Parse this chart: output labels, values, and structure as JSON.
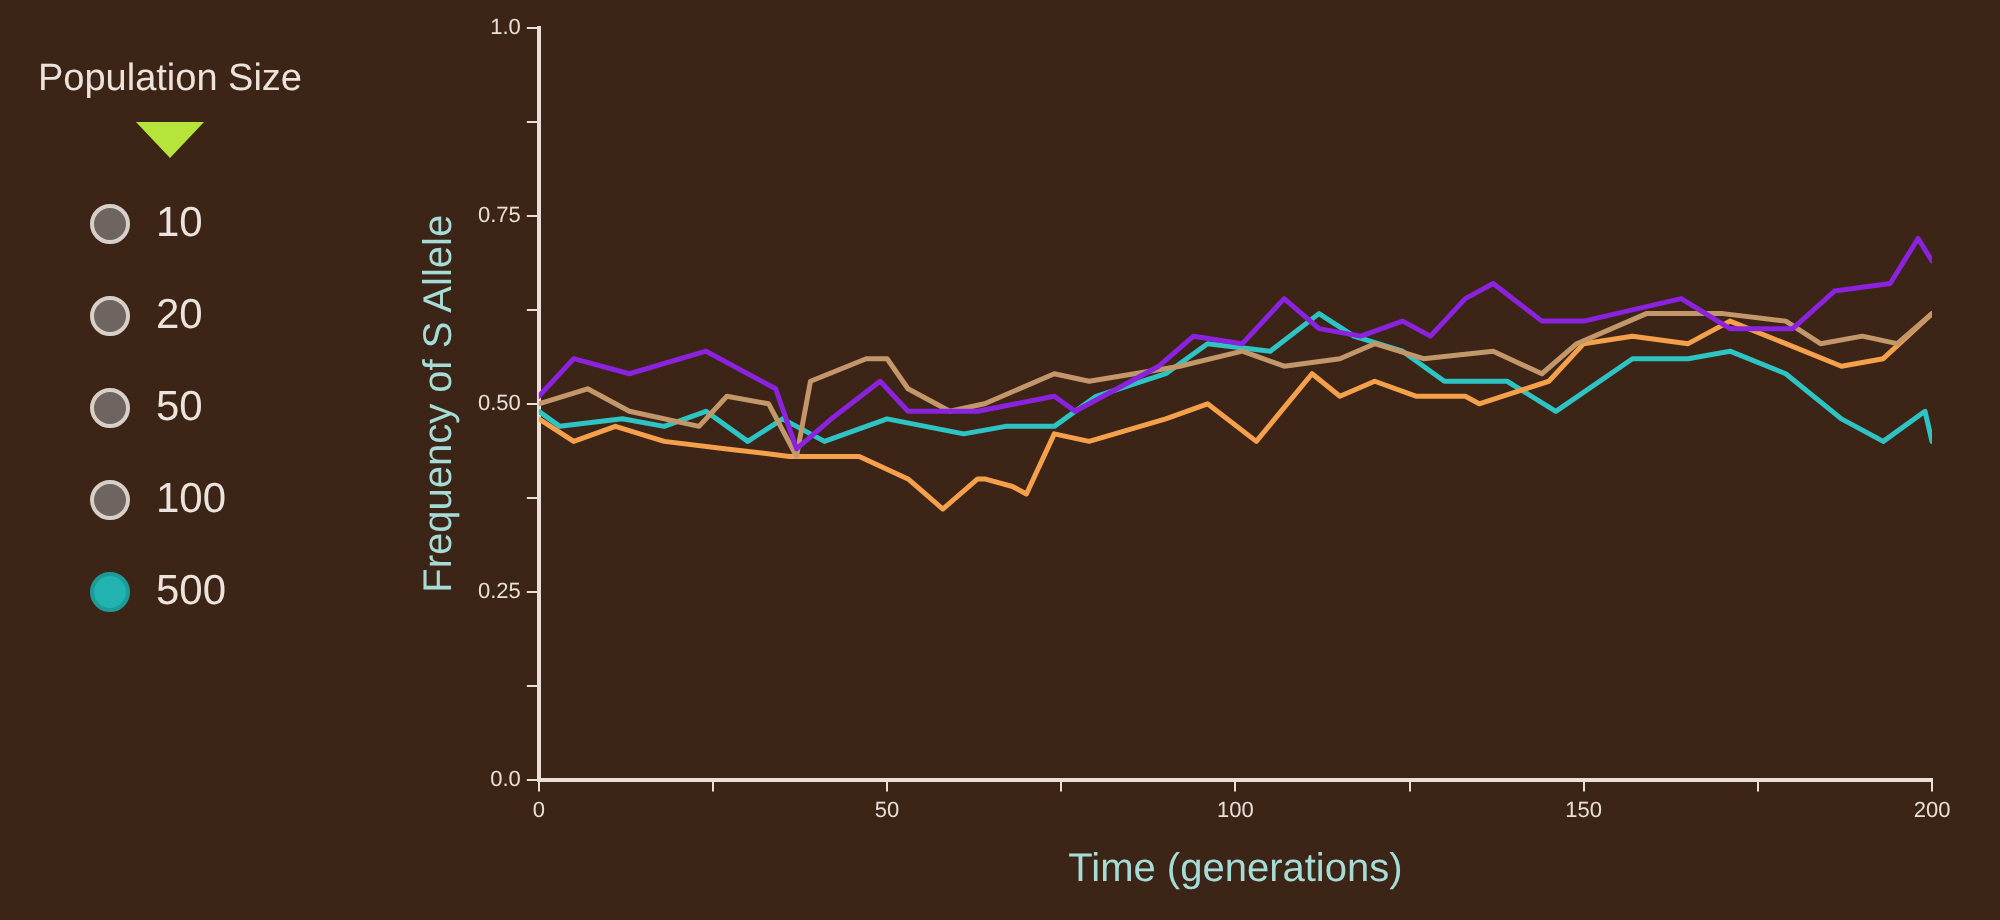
{
  "chart_data": {
    "type": "line",
    "xlabel": "Time (generations)",
    "ylabel": "Frequency of S Allele",
    "annotations": [
      "Population Size",
      "10",
      "20",
      "50",
      "100",
      "500"
    ],
    "xlim": [
      0,
      200
    ],
    "ylim": [
      0,
      1
    ],
    "xticks": [
      0,
      {
        "value": 25,
        "label": null
      },
      50,
      {
        "value": 75,
        "label": null
      },
      100,
      {
        "value": 125,
        "label": null
      },
      150,
      {
        "value": 175,
        "label": null
      },
      200
    ],
    "yticks": [
      {
        "value": 0,
        "label": "0.0"
      },
      {
        "value": 0.125,
        "label": null
      },
      {
        "value": 0.25,
        "label": "0.25"
      },
      {
        "value": 0.375,
        "label": null
      },
      {
        "value": 0.5,
        "label": "0.50"
      },
      {
        "value": 0.625,
        "label": null
      },
      {
        "value": 0.75,
        "label": "0.75"
      },
      {
        "value": 0.875,
        "label": null
      },
      {
        "value": 1,
        "label": "1.0"
      }
    ],
    "grid": false,
    "legend": false,
    "marker": "none",
    "line_style": "solid",
    "series": [
      {
        "color": "#8b22dd",
        "x": [
          0,
          5,
          13,
          24,
          34,
          37,
          42,
          49,
          53,
          61,
          63,
          74,
          77,
          89,
          94,
          101,
          107,
          112,
          118,
          124,
          128,
          133,
          137,
          144,
          150,
          164,
          171,
          180,
          186,
          194,
          198,
          200
        ],
        "values": [
          0.51,
          0.56,
          0.54,
          0.57,
          0.52,
          0.44,
          0.48,
          0.53,
          0.49,
          0.49,
          0.49,
          0.51,
          0.49,
          0.55,
          0.59,
          0.58,
          0.64,
          0.6,
          0.59,
          0.61,
          0.59,
          0.64,
          0.66,
          0.61,
          0.61,
          0.64,
          0.6,
          0.6,
          0.65,
          0.66,
          0.72,
          0.69
        ]
      },
      {
        "color": "#c4976a",
        "x": [
          0,
          7,
          13,
          23,
          27,
          33,
          37,
          39,
          47,
          50,
          53,
          59,
          64,
          74,
          79,
          92,
          101,
          107,
          115,
          120,
          127,
          137,
          144,
          149,
          159,
          170,
          179,
          184,
          190,
          195,
          200
        ],
        "values": [
          0.5,
          0.52,
          0.49,
          0.47,
          0.51,
          0.5,
          0.43,
          0.53,
          0.56,
          0.56,
          0.52,
          0.49,
          0.5,
          0.54,
          0.53,
          0.55,
          0.57,
          0.55,
          0.56,
          0.58,
          0.56,
          0.57,
          0.54,
          0.58,
          0.62,
          0.62,
          0.61,
          0.58,
          0.59,
          0.58,
          0.62
        ]
      },
      {
        "color": "#f5a04a",
        "x": [
          0,
          5,
          11,
          18,
          27,
          36,
          46,
          53,
          58,
          63,
          64,
          68,
          70,
          74,
          79,
          90,
          96,
          103,
          111,
          115,
          120,
          126,
          133,
          135,
          145,
          150,
          157,
          165,
          171,
          179,
          187,
          193,
          200
        ],
        "values": [
          0.48,
          0.45,
          0.47,
          0.45,
          0.44,
          0.43,
          0.43,
          0.4,
          0.36,
          0.4,
          0.4,
          0.39,
          0.38,
          0.46,
          0.45,
          0.48,
          0.5,
          0.45,
          0.54,
          0.51,
          0.53,
          0.51,
          0.51,
          0.5,
          0.53,
          0.58,
          0.59,
          0.58,
          0.61,
          0.58,
          0.55,
          0.56,
          0.62
        ]
      },
      {
        "color": "#2ec4c4",
        "x": [
          0,
          3,
          12,
          18,
          24,
          30,
          35,
          41,
          50,
          61,
          67,
          74,
          80,
          90,
          96,
          105,
          112,
          117,
          124,
          130,
          133,
          139,
          146,
          157,
          165,
          171,
          179,
          187,
          193,
          199,
          200
        ],
        "values": [
          0.49,
          0.47,
          0.48,
          0.47,
          0.49,
          0.45,
          0.48,
          0.45,
          0.48,
          0.46,
          0.47,
          0.47,
          0.51,
          0.54,
          0.58,
          0.57,
          0.62,
          0.59,
          0.57,
          0.53,
          0.53,
          0.53,
          0.49,
          0.56,
          0.56,
          0.57,
          0.54,
          0.48,
          0.45,
          0.49,
          0.45
        ]
      }
    ]
  }
}
